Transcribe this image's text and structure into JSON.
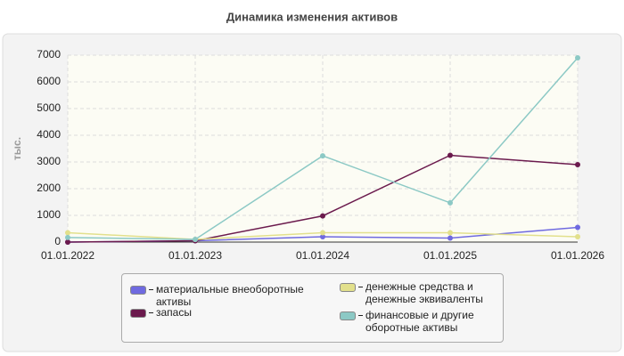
{
  "chart_data": {
    "type": "line",
    "title": "Динамика изменения активов",
    "ylabel": "тыс.",
    "categories": [
      "01.01.2022",
      "01.01.2023",
      "01.01.2024",
      "01.01.2025",
      "01.01.2026"
    ],
    "series": [
      {
        "name": "материальные внеоборотные активы",
        "color": "#6f6ae0",
        "values": [
          0,
          50,
          200,
          150,
          550
        ]
      },
      {
        "name": "запасы",
        "color": "#6b1a4d",
        "values": [
          0,
          50,
          980,
          3250,
          2900
        ]
      },
      {
        "name": "денежные средства и денежные эквиваленты",
        "color": "#e2e08c",
        "values": [
          350,
          100,
          350,
          350,
          200
        ]
      },
      {
        "name": "финансовые и другие оборотные активы",
        "color": "#8cc9c5",
        "values": [
          170,
          100,
          3230,
          1470,
          6900
        ]
      }
    ],
    "ylim": [
      0,
      7000
    ],
    "yticks": [
      0,
      1000,
      2000,
      3000,
      4000,
      5000,
      6000,
      7000
    ],
    "grid": true
  }
}
